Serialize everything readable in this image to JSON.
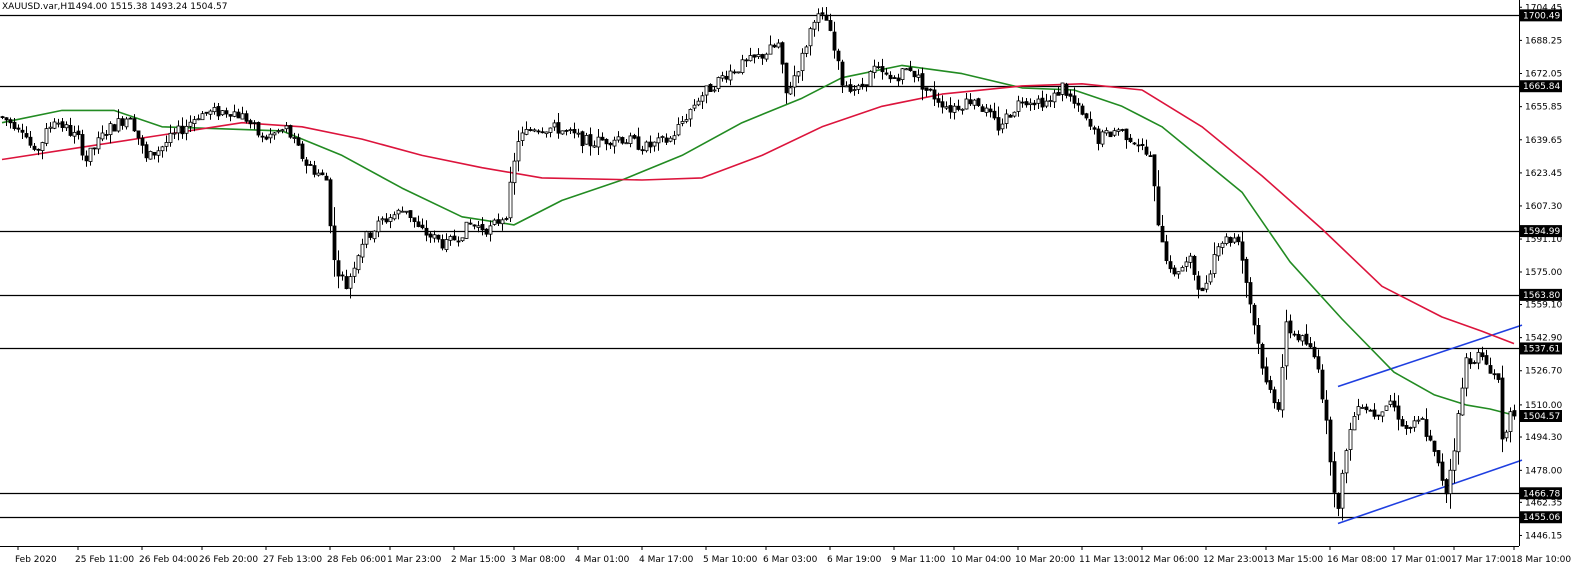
{
  "header": {
    "symbol": "XAUUSD.var,H1",
    "ohlc": "1494.00 1515.38 1493.24 1504.57"
  },
  "colors": {
    "bull_candle": "#ffffff",
    "bear_candle": "#000000",
    "candle_outline": "#000000",
    "ma_fast": "#228b22",
    "ma_slow": "#dc143c",
    "channel": "#1f3fe0",
    "levels": "#000000"
  },
  "chart_data": {
    "type": "candlestick",
    "yaxis": {
      "range": [
        1441.0,
        1708.0
      ],
      "ticks": [
        "1704.45",
        "1688.25",
        "1672.05",
        "1655.85",
        "1639.65",
        "1623.45",
        "1607.30",
        "1591.10",
        "1575.00",
        "1559.10",
        "1542.90",
        "1526.70",
        "1510.00",
        "1494.30",
        "1478.00",
        "1462.35",
        "1446.15"
      ]
    },
    "xaxis": {
      "index_range": [
        0,
        378
      ],
      "labels": [
        {
          "text": "Feb 2020",
          "i": 4
        },
        {
          "text": "25 Feb 11:00",
          "i": 19
        },
        {
          "text": "26 Feb 04:00",
          "i": 35
        },
        {
          "text": "26 Feb 20:00",
          "i": 50
        },
        {
          "text": "27 Feb 13:00",
          "i": 66
        },
        {
          "text": "28 Feb 06:00",
          "i": 82
        },
        {
          "text": "1 Mar 23:00",
          "i": 97
        },
        {
          "text": "2 Mar 15:00",
          "i": 113
        },
        {
          "text": "3 Mar 08:00",
          "i": 128
        },
        {
          "text": "4 Mar 01:00",
          "i": 144
        },
        {
          "text": "4 Mar 17:00",
          "i": 160
        },
        {
          "text": "5 Mar 10:00",
          "i": 176
        },
        {
          "text": "6 Mar 03:00",
          "i": 191
        },
        {
          "text": "6 Mar 19:00",
          "i": 207
        },
        {
          "text": "9 Mar 11:00",
          "i": 223
        },
        {
          "text": "10 Mar 04:00",
          "i": 238
        },
        {
          "text": "10 Mar 20:00",
          "i": 254
        },
        {
          "text": "11 Mar 13:00",
          "i": 270
        },
        {
          "text": "12 Mar 06:00",
          "i": 285
        },
        {
          "text": "12 Mar 23:00",
          "i": 301
        },
        {
          "text": "13 Mar 15:00",
          "i": 316
        },
        {
          "text": "16 Mar 08:00",
          "i": 332
        },
        {
          "text": "17 Mar 01:00",
          "i": 348
        },
        {
          "text": "17 Mar 17:00",
          "i": 363
        },
        {
          "text": "18 Mar 10:00",
          "i": 378
        }
      ]
    },
    "levels": [
      {
        "value": 1700.49,
        "label": "1700.49"
      },
      {
        "value": 1665.84,
        "label": "1665.84"
      },
      {
        "value": 1594.99,
        "label": "1594.99"
      },
      {
        "value": 1563.8,
        "label": "1563.80"
      },
      {
        "value": 1537.61,
        "label": "1537.61"
      },
      {
        "value": 1466.78,
        "label": "1466.78"
      },
      {
        "value": 1455.06,
        "label": "1455.06"
      }
    ],
    "current_price": {
      "value": 1504.57,
      "label": "1504.57"
    },
    "price_path": [
      {
        "i": 0,
        "p": 1651
      },
      {
        "i": 6,
        "p": 1646
      },
      {
        "i": 9,
        "p": 1632
      },
      {
        "i": 14,
        "p": 1650
      },
      {
        "i": 20,
        "p": 1640
      },
      {
        "i": 22,
        "p": 1630
      },
      {
        "i": 27,
        "p": 1644
      },
      {
        "i": 33,
        "p": 1652
      },
      {
        "i": 37,
        "p": 1630
      },
      {
        "i": 43,
        "p": 1640
      },
      {
        "i": 50,
        "p": 1652
      },
      {
        "i": 58,
        "p": 1654
      },
      {
        "i": 62,
        "p": 1650
      },
      {
        "i": 66,
        "p": 1640
      },
      {
        "i": 72,
        "p": 1645
      },
      {
        "i": 77,
        "p": 1628
      },
      {
        "i": 82,
        "p": 1620
      },
      {
        "i": 84,
        "p": 1580
      },
      {
        "i": 87,
        "p": 1568
      },
      {
        "i": 91,
        "p": 1590
      },
      {
        "i": 96,
        "p": 1600
      },
      {
        "i": 102,
        "p": 1606
      },
      {
        "i": 105,
        "p": 1596
      },
      {
        "i": 112,
        "p": 1588
      },
      {
        "i": 118,
        "p": 1598
      },
      {
        "i": 123,
        "p": 1596
      },
      {
        "i": 127,
        "p": 1604
      },
      {
        "i": 130,
        "p": 1640
      },
      {
        "i": 134,
        "p": 1646
      },
      {
        "i": 140,
        "p": 1645
      },
      {
        "i": 148,
        "p": 1638
      },
      {
        "i": 155,
        "p": 1641
      },
      {
        "i": 162,
        "p": 1636
      },
      {
        "i": 168,
        "p": 1640
      },
      {
        "i": 175,
        "p": 1660
      },
      {
        "i": 182,
        "p": 1672
      },
      {
        "i": 190,
        "p": 1680
      },
      {
        "i": 195,
        "p": 1686
      },
      {
        "i": 197,
        "p": 1662
      },
      {
        "i": 201,
        "p": 1680
      },
      {
        "i": 204,
        "p": 1700
      },
      {
        "i": 207,
        "p": 1698
      },
      {
        "i": 211,
        "p": 1668
      },
      {
        "i": 215,
        "p": 1664
      },
      {
        "i": 219,
        "p": 1674
      },
      {
        "i": 223,
        "p": 1669
      },
      {
        "i": 228,
        "p": 1675
      },
      {
        "i": 232,
        "p": 1664
      },
      {
        "i": 238,
        "p": 1655
      },
      {
        "i": 244,
        "p": 1660
      },
      {
        "i": 250,
        "p": 1646
      },
      {
        "i": 256,
        "p": 1660
      },
      {
        "i": 263,
        "p": 1658
      },
      {
        "i": 266,
        "p": 1666
      },
      {
        "i": 270,
        "p": 1654
      },
      {
        "i": 275,
        "p": 1640
      },
      {
        "i": 280,
        "p": 1645
      },
      {
        "i": 285,
        "p": 1638
      },
      {
        "i": 288,
        "p": 1630
      },
      {
        "i": 290,
        "p": 1600
      },
      {
        "i": 293,
        "p": 1574
      },
      {
        "i": 298,
        "p": 1580
      },
      {
        "i": 301,
        "p": 1564
      },
      {
        "i": 305,
        "p": 1590
      },
      {
        "i": 310,
        "p": 1592
      },
      {
        "i": 313,
        "p": 1560
      },
      {
        "i": 317,
        "p": 1520
      },
      {
        "i": 320,
        "p": 1510
      },
      {
        "i": 322,
        "p": 1548
      },
      {
        "i": 327,
        "p": 1540
      },
      {
        "i": 330,
        "p": 1530
      },
      {
        "i": 332,
        "p": 1500
      },
      {
        "i": 334,
        "p": 1470
      },
      {
        "i": 335,
        "p": 1458
      },
      {
        "i": 337,
        "p": 1490
      },
      {
        "i": 340,
        "p": 1512
      },
      {
        "i": 344,
        "p": 1506
      },
      {
        "i": 348,
        "p": 1512
      },
      {
        "i": 352,
        "p": 1498
      },
      {
        "i": 356,
        "p": 1502
      },
      {
        "i": 360,
        "p": 1480
      },
      {
        "i": 362,
        "p": 1468
      },
      {
        "i": 364,
        "p": 1490
      },
      {
        "i": 367,
        "p": 1532
      },
      {
        "i": 370,
        "p": 1534
      },
      {
        "i": 373,
        "p": 1528
      },
      {
        "i": 375,
        "p": 1522
      },
      {
        "i": 376,
        "p": 1495
      },
      {
        "i": 378,
        "p": 1504
      }
    ],
    "series": [
      {
        "kind": "line",
        "color_key": "ma_fast",
        "points": [
          {
            "i": 0,
            "p": 1648
          },
          {
            "i": 15,
            "p": 1654
          },
          {
            "i": 28,
            "p": 1654
          },
          {
            "i": 40,
            "p": 1646
          },
          {
            "i": 55,
            "p": 1645
          },
          {
            "i": 70,
            "p": 1644
          },
          {
            "i": 85,
            "p": 1632
          },
          {
            "i": 100,
            "p": 1616
          },
          {
            "i": 115,
            "p": 1602
          },
          {
            "i": 128,
            "p": 1598
          },
          {
            "i": 140,
            "p": 1610
          },
          {
            "i": 155,
            "p": 1620
          },
          {
            "i": 170,
            "p": 1632
          },
          {
            "i": 185,
            "p": 1648
          },
          {
            "i": 200,
            "p": 1660
          },
          {
            "i": 210,
            "p": 1670
          },
          {
            "i": 225,
            "p": 1676
          },
          {
            "i": 240,
            "p": 1672
          },
          {
            "i": 255,
            "p": 1665
          },
          {
            "i": 268,
            "p": 1664
          },
          {
            "i": 280,
            "p": 1656
          },
          {
            "i": 290,
            "p": 1646
          },
          {
            "i": 300,
            "p": 1630
          },
          {
            "i": 310,
            "p": 1614
          },
          {
            "i": 322,
            "p": 1580
          },
          {
            "i": 335,
            "p": 1552
          },
          {
            "i": 348,
            "p": 1526
          },
          {
            "i": 358,
            "p": 1515
          },
          {
            "i": 366,
            "p": 1510
          },
          {
            "i": 372,
            "p": 1508
          },
          {
            "i": 378,
            "p": 1505
          }
        ]
      },
      {
        "kind": "line",
        "color_key": "ma_slow",
        "points": [
          {
            "i": 0,
            "p": 1630
          },
          {
            "i": 20,
            "p": 1636
          },
          {
            "i": 40,
            "p": 1642
          },
          {
            "i": 60,
            "p": 1648
          },
          {
            "i": 75,
            "p": 1646
          },
          {
            "i": 90,
            "p": 1640
          },
          {
            "i": 105,
            "p": 1632
          },
          {
            "i": 120,
            "p": 1626
          },
          {
            "i": 135,
            "p": 1621
          },
          {
            "i": 160,
            "p": 1620
          },
          {
            "i": 175,
            "p": 1621
          },
          {
            "i": 190,
            "p": 1632
          },
          {
            "i": 205,
            "p": 1646
          },
          {
            "i": 220,
            "p": 1656
          },
          {
            "i": 235,
            "p": 1662
          },
          {
            "i": 255,
            "p": 1666
          },
          {
            "i": 270,
            "p": 1667
          },
          {
            "i": 285,
            "p": 1664
          },
          {
            "i": 300,
            "p": 1646
          },
          {
            "i": 315,
            "p": 1622
          },
          {
            "i": 330,
            "p": 1596
          },
          {
            "i": 345,
            "p": 1568
          },
          {
            "i": 360,
            "p": 1553
          },
          {
            "i": 370,
            "p": 1546
          },
          {
            "i": 378,
            "p": 1540
          }
        ]
      }
    ],
    "channel": [
      {
        "from": {
          "i": 334,
          "p": 1519
        },
        "to": {
          "i": 380,
          "p": 1549
        }
      },
      {
        "from": {
          "i": 334,
          "p": 1452
        },
        "to": {
          "i": 380,
          "p": 1483
        }
      }
    ]
  }
}
